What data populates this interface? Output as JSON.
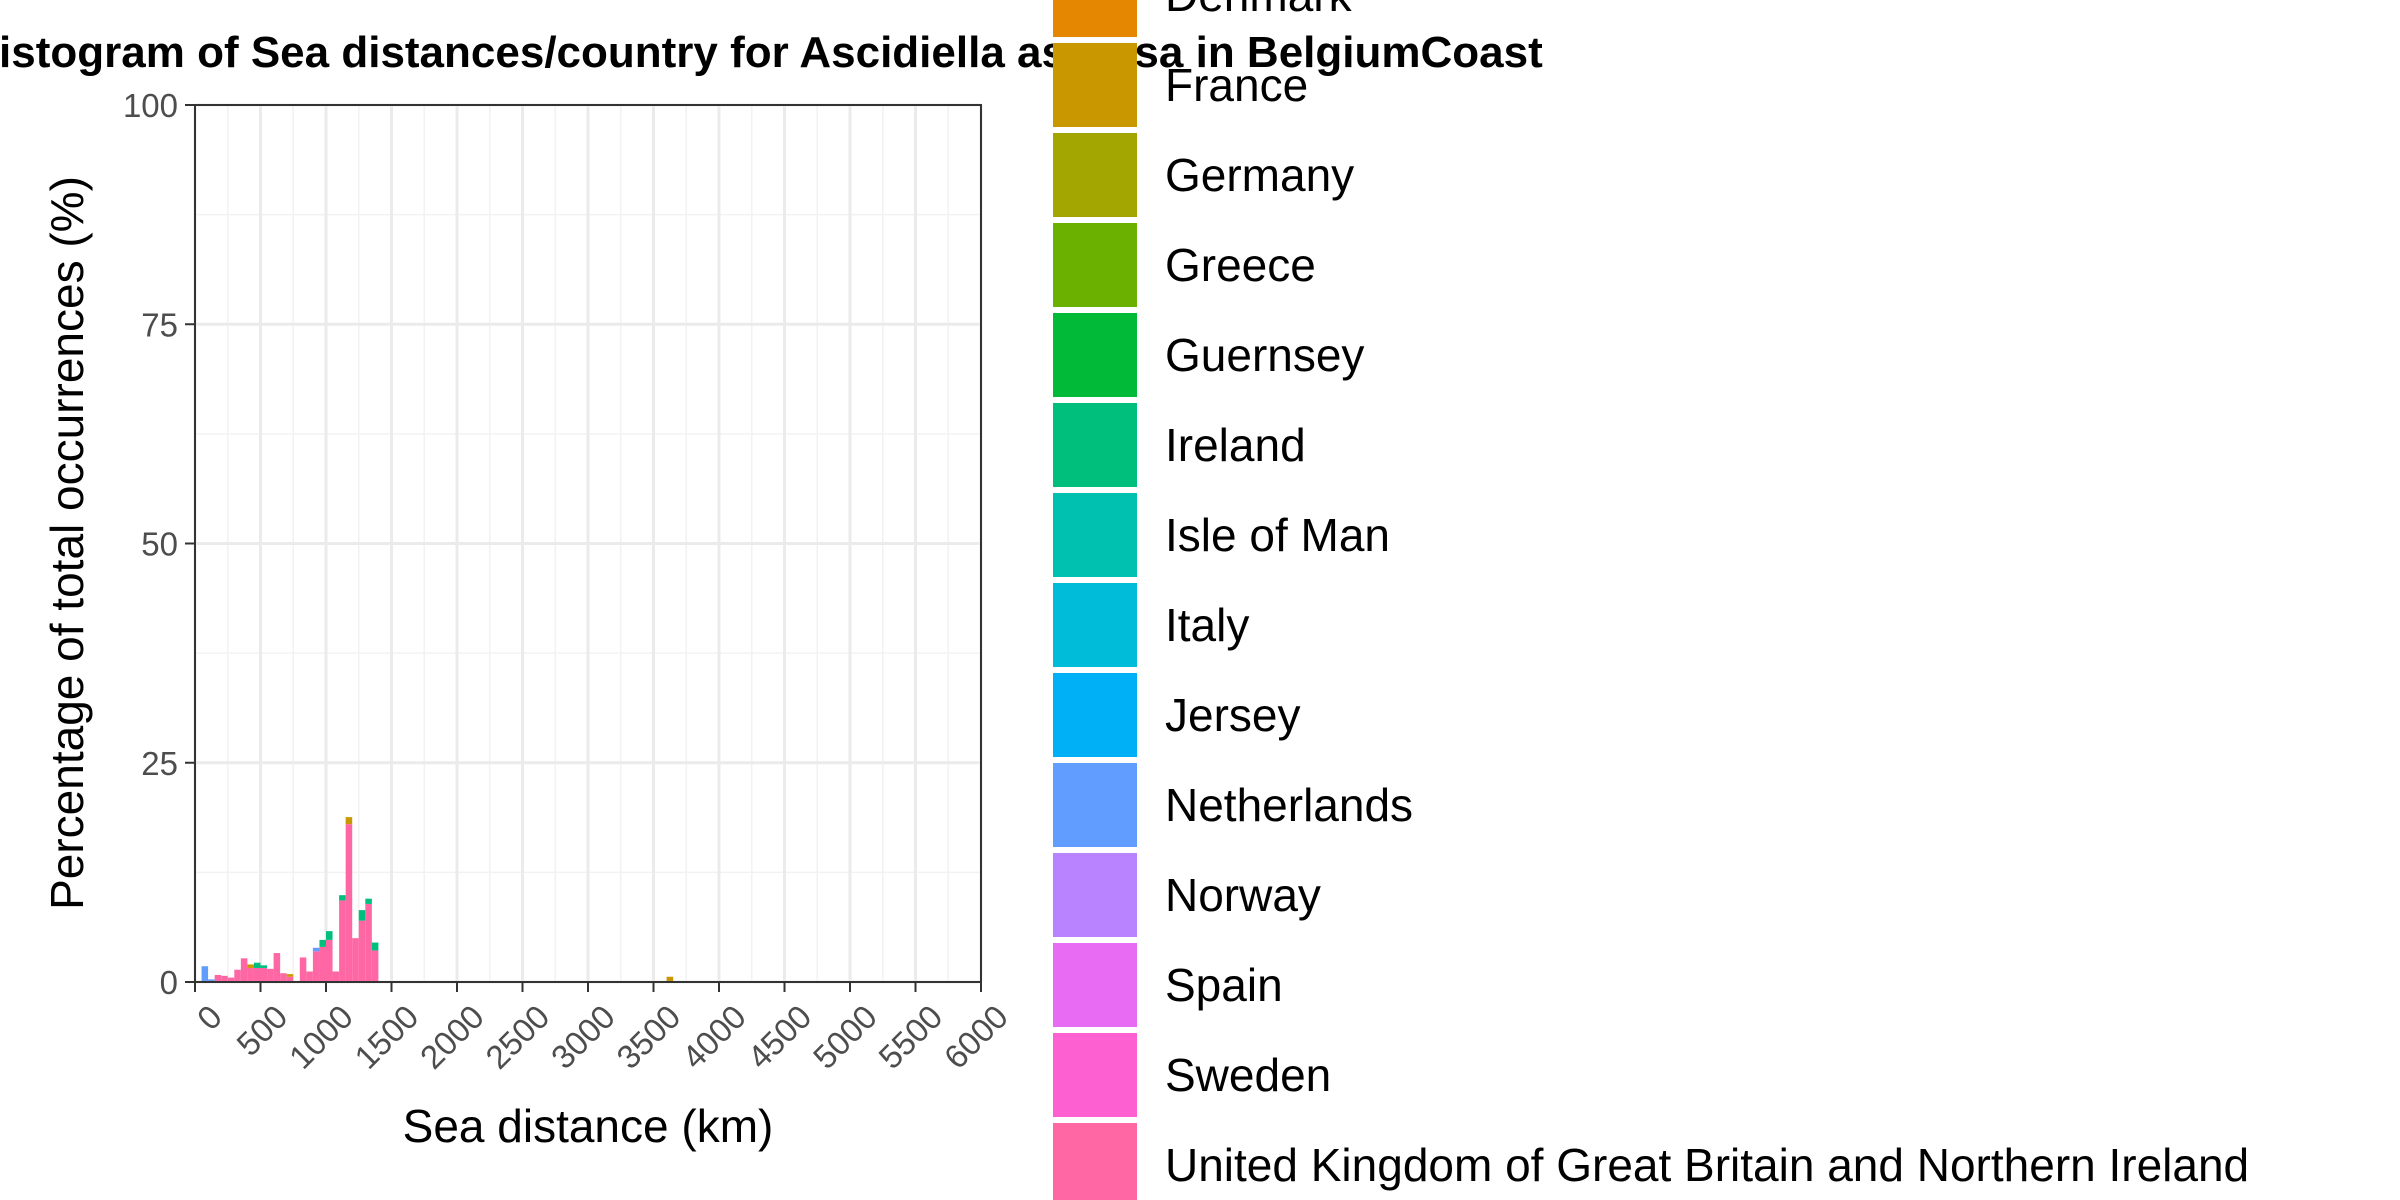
{
  "chart_data": {
    "type": "bar",
    "stacked": true,
    "title": "Histogram of Sea distances/country for Ascidiella aspersa in BelgiumCoast",
    "xlabel": "Sea distance (km)",
    "ylabel": "Percentage of total occurrences (%)",
    "xlim": [
      0,
      6000
    ],
    "ylim": [
      0,
      100
    ],
    "x_ticks": [
      "0",
      "500",
      "1000",
      "1500",
      "2000",
      "2500",
      "3000",
      "3500",
      "4000",
      "4500",
      "5000",
      "5500",
      "6000"
    ],
    "y_ticks": [
      "0",
      "25",
      "50",
      "75",
      "100"
    ],
    "bin_width": 50,
    "grid": true,
    "legend_position": "right",
    "legend": [
      {
        "name": "Denmark",
        "color": "#E58700"
      },
      {
        "name": "France",
        "color": "#C99800"
      },
      {
        "name": "Germany",
        "color": "#A3A500"
      },
      {
        "name": "Greece",
        "color": "#6BB100"
      },
      {
        "name": "Guernsey",
        "color": "#00BA38"
      },
      {
        "name": "Ireland",
        "color": "#00BF7D"
      },
      {
        "name": "Isle of Man",
        "color": "#00C0AF"
      },
      {
        "name": "Italy",
        "color": "#00BCD8"
      },
      {
        "name": "Jersey",
        "color": "#00B0F6"
      },
      {
        "name": "Netherlands",
        "color": "#619CFF"
      },
      {
        "name": "Norway",
        "color": "#B983FF"
      },
      {
        "name": "Spain",
        "color": "#E76BF3"
      },
      {
        "name": "Sweden",
        "color": "#FD61D1"
      },
      {
        "name": "United Kingdom of Great Britain and Northern Ireland",
        "color": "#FF67A4"
      }
    ],
    "bars": [
      {
        "x0": 50,
        "segments": [
          {
            "name": "Netherlands",
            "value": 1.8
          }
        ]
      },
      {
        "x0": 100,
        "segments": [
          {
            "name": "Netherlands",
            "value": 0.3
          }
        ]
      },
      {
        "x0": 150,
        "segments": [
          {
            "name": "United Kingdom of Great Britain and Northern Ireland",
            "value": 0.8
          }
        ]
      },
      {
        "x0": 200,
        "segments": [
          {
            "name": "United Kingdom of Great Britain and Northern Ireland",
            "value": 0.7
          }
        ]
      },
      {
        "x0": 250,
        "segments": [
          {
            "name": "United Kingdom of Great Britain and Northern Ireland",
            "value": 0.5
          }
        ]
      },
      {
        "x0": 300,
        "segments": [
          {
            "name": "United Kingdom of Great Britain and Northern Ireland",
            "value": 1.4
          }
        ]
      },
      {
        "x0": 350,
        "segments": [
          {
            "name": "United Kingdom of Great Britain and Northern Ireland",
            "value": 2.7
          }
        ]
      },
      {
        "x0": 400,
        "segments": [
          {
            "name": "United Kingdom of Great Britain and Northern Ireland",
            "value": 1.6
          },
          {
            "name": "France",
            "value": 0.4
          }
        ]
      },
      {
        "x0": 450,
        "segments": [
          {
            "name": "United Kingdom of Great Britain and Northern Ireland",
            "value": 1.6
          },
          {
            "name": "Ireland",
            "value": 0.6
          }
        ]
      },
      {
        "x0": 500,
        "segments": [
          {
            "name": "United Kingdom of Great Britain and Northern Ireland",
            "value": 1.6
          },
          {
            "name": "Ireland",
            "value": 0.3
          }
        ]
      },
      {
        "x0": 550,
        "segments": [
          {
            "name": "United Kingdom of Great Britain and Northern Ireland",
            "value": 1.5
          }
        ]
      },
      {
        "x0": 600,
        "segments": [
          {
            "name": "United Kingdom of Great Britain and Northern Ireland",
            "value": 3.3
          }
        ]
      },
      {
        "x0": 650,
        "segments": [
          {
            "name": "United Kingdom of Great Britain and Northern Ireland",
            "value": 1.0
          }
        ]
      },
      {
        "x0": 700,
        "segments": [
          {
            "name": "United Kingdom of Great Britain and Northern Ireland",
            "value": 0.6
          },
          {
            "name": "France",
            "value": 0.3
          }
        ]
      },
      {
        "x0": 800,
        "segments": [
          {
            "name": "United Kingdom of Great Britain and Northern Ireland",
            "value": 2.8
          }
        ]
      },
      {
        "x0": 850,
        "segments": [
          {
            "name": "United Kingdom of Great Britain and Northern Ireland",
            "value": 1.2
          }
        ]
      },
      {
        "x0": 900,
        "segments": [
          {
            "name": "United Kingdom of Great Britain and Northern Ireland",
            "value": 3.5
          },
          {
            "name": "Netherlands",
            "value": 0.4
          }
        ]
      },
      {
        "x0": 950,
        "segments": [
          {
            "name": "United Kingdom of Great Britain and Northern Ireland",
            "value": 4.0
          },
          {
            "name": "Ireland",
            "value": 0.8
          }
        ]
      },
      {
        "x0": 1000,
        "segments": [
          {
            "name": "United Kingdom of Great Britain and Northern Ireland",
            "value": 4.8
          },
          {
            "name": "Ireland",
            "value": 1.0
          }
        ]
      },
      {
        "x0": 1050,
        "segments": [
          {
            "name": "United Kingdom of Great Britain and Northern Ireland",
            "value": 1.2
          }
        ]
      },
      {
        "x0": 1100,
        "segments": [
          {
            "name": "United Kingdom of Great Britain and Northern Ireland",
            "value": 9.3
          },
          {
            "name": "Ireland",
            "value": 0.6
          }
        ]
      },
      {
        "x0": 1150,
        "segments": [
          {
            "name": "United Kingdom of Great Britain and Northern Ireland",
            "value": 18.0
          },
          {
            "name": "France",
            "value": 0.8
          }
        ]
      },
      {
        "x0": 1200,
        "segments": [
          {
            "name": "United Kingdom of Great Britain and Northern Ireland",
            "value": 5.0
          }
        ]
      },
      {
        "x0": 1250,
        "segments": [
          {
            "name": "United Kingdom of Great Britain and Northern Ireland",
            "value": 7.0
          },
          {
            "name": "Ireland",
            "value": 1.2
          }
        ]
      },
      {
        "x0": 1300,
        "segments": [
          {
            "name": "United Kingdom of Great Britain and Northern Ireland",
            "value": 8.9
          },
          {
            "name": "Ireland",
            "value": 0.6
          }
        ]
      },
      {
        "x0": 1350,
        "segments": [
          {
            "name": "United Kingdom of Great Britain and Northern Ireland",
            "value": 3.6
          },
          {
            "name": "Ireland",
            "value": 0.9
          }
        ]
      },
      {
        "x0": 3600,
        "segments": [
          {
            "name": "France",
            "value": 0.6
          }
        ]
      }
    ]
  }
}
